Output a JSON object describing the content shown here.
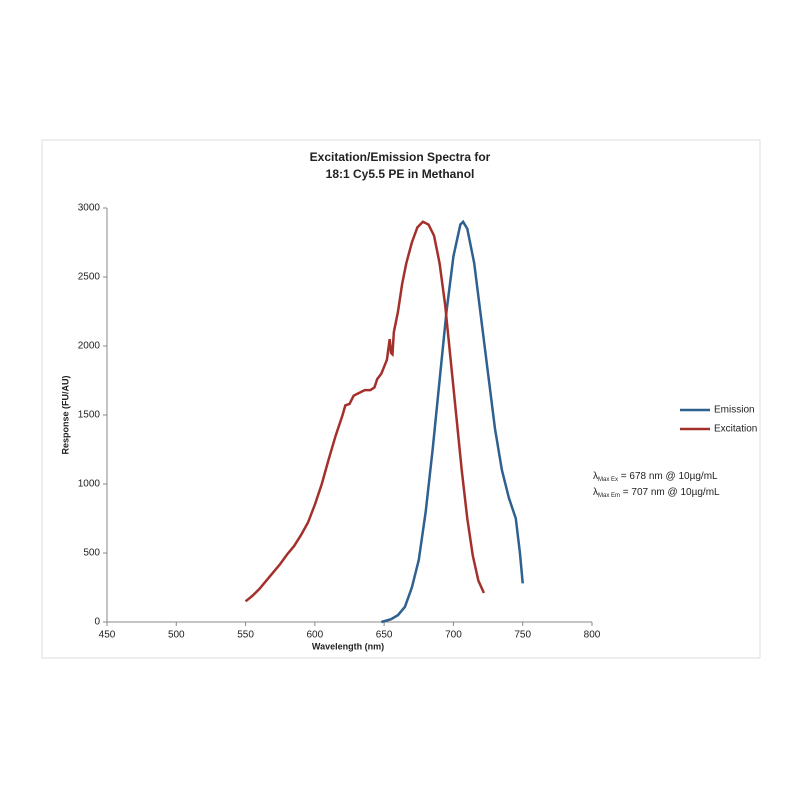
{
  "chart_data": {
    "type": "line",
    "title": [
      "Excitation/Emission Spectra for",
      "18:1 Cy5.5 PE in Methanol"
    ],
    "x_label": "Wavelength (nm)",
    "y_label": "Response (FU/AU)",
    "xlim": [
      450,
      800
    ],
    "xticks": [
      450,
      500,
      550,
      600,
      650,
      700,
      750,
      800
    ],
    "ylim": [
      0,
      3000
    ],
    "yticks": [
      0,
      500,
      1000,
      1500,
      2000,
      2500,
      3000
    ],
    "legend": "right",
    "series": [
      {
        "name": "Emission",
        "color": "#2e6090",
        "x": [
          648,
          655,
          660,
          665,
          670,
          675,
          680,
          685,
          690,
          695,
          700,
          705,
          707,
          710,
          715,
          720,
          725,
          730,
          735,
          740,
          745,
          748,
          750
        ],
        "values": [
          0,
          20,
          50,
          110,
          250,
          450,
          800,
          1250,
          1750,
          2250,
          2650,
          2880,
          2900,
          2850,
          2600,
          2200,
          1800,
          1400,
          1100,
          900,
          750,
          500,
          280
        ]
      },
      {
        "name": "Excitation",
        "color": "#a3302b",
        "x": [
          550,
          555,
          560,
          565,
          570,
          575,
          580,
          585,
          590,
          595,
          600,
          605,
          610,
          615,
          620,
          622,
          625,
          628,
          632,
          636,
          640,
          643,
          645,
          648,
          650,
          652,
          654,
          655,
          656,
          657,
          660,
          663,
          666,
          670,
          674,
          678,
          682,
          686,
          690,
          694,
          698,
          702,
          706,
          710,
          714,
          718,
          722
        ],
        "values": [
          150,
          190,
          240,
          300,
          360,
          420,
          490,
          550,
          630,
          720,
          850,
          1000,
          1180,
          1350,
          1500,
          1570,
          1580,
          1640,
          1660,
          1680,
          1680,
          1700,
          1760,
          1800,
          1850,
          1900,
          2050,
          1950,
          1940,
          2100,
          2250,
          2450,
          2600,
          2750,
          2860,
          2900,
          2880,
          2800,
          2600,
          2300,
          1900,
          1500,
          1100,
          750,
          480,
          300,
          210
        ]
      }
    ],
    "annotations": [
      {
        "symbol": "λ",
        "sub": "Max Ex",
        "text": " = 678 nm @ 10µg/mL"
      },
      {
        "symbol": "λ",
        "sub": "Max Em",
        "text": " = 707 nm @ 10µg/mL"
      }
    ]
  }
}
